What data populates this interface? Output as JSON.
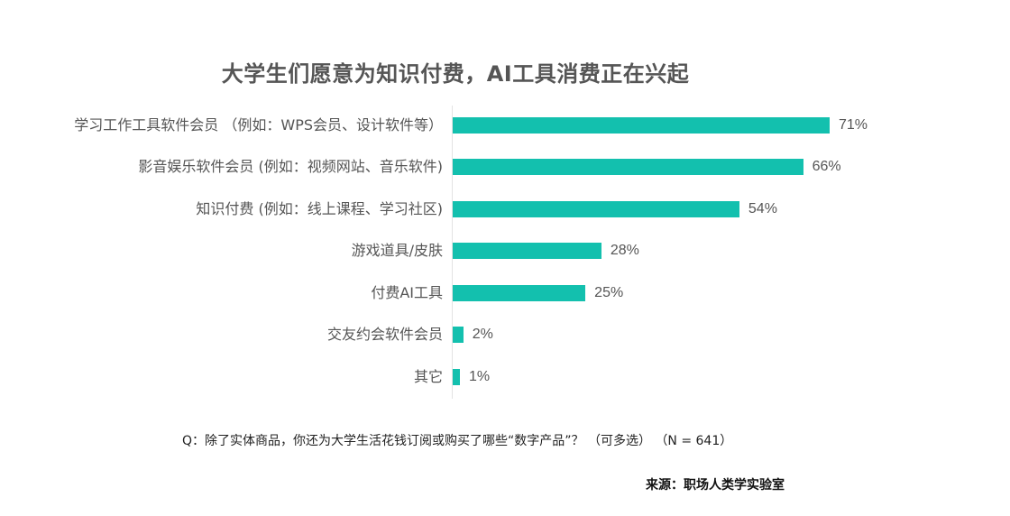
{
  "colors": {
    "bar": "#13C0AE",
    "axis": "#e3e3e3",
    "text": "#555555"
  },
  "chart_data": {
    "type": "bar",
    "orientation": "horizontal",
    "title": "大学生们愿意为知识付费，AI工具消费正在兴起",
    "categories": [
      "学习工作工具软件会员 （例如：WPS会员、设计软件等）",
      "影音娱乐软件会员 (例如：视频网站、音乐软件)",
      "知识付费 (例如：线上课程、学习社区)",
      "游戏道具/皮肤",
      "付费AI工具",
      "交友约会软件会员",
      "其它"
    ],
    "values": [
      71,
      66,
      54,
      28,
      25,
      2,
      1
    ],
    "value_labels": [
      "71%",
      "66%",
      "54%",
      "28%",
      "25%",
      "2%",
      "1%"
    ],
    "xlabel": "",
    "ylabel": "",
    "xlim": [
      0,
      100
    ],
    "grid": false,
    "legend": null,
    "unit": "%",
    "annotations": [
      "Q：除了实体商品，你还为大学生活花钱订阅或购买了哪些“数字产品”？ （可多选） （N = 641）",
      "来源：职场人类学实验室"
    ]
  },
  "footer": {
    "question": "Q：除了实体商品，你还为大学生活花钱订阅或购买了哪些“数字产品”？ （可多选） （N = 641）",
    "source": "来源：职场人类学实验室"
  }
}
